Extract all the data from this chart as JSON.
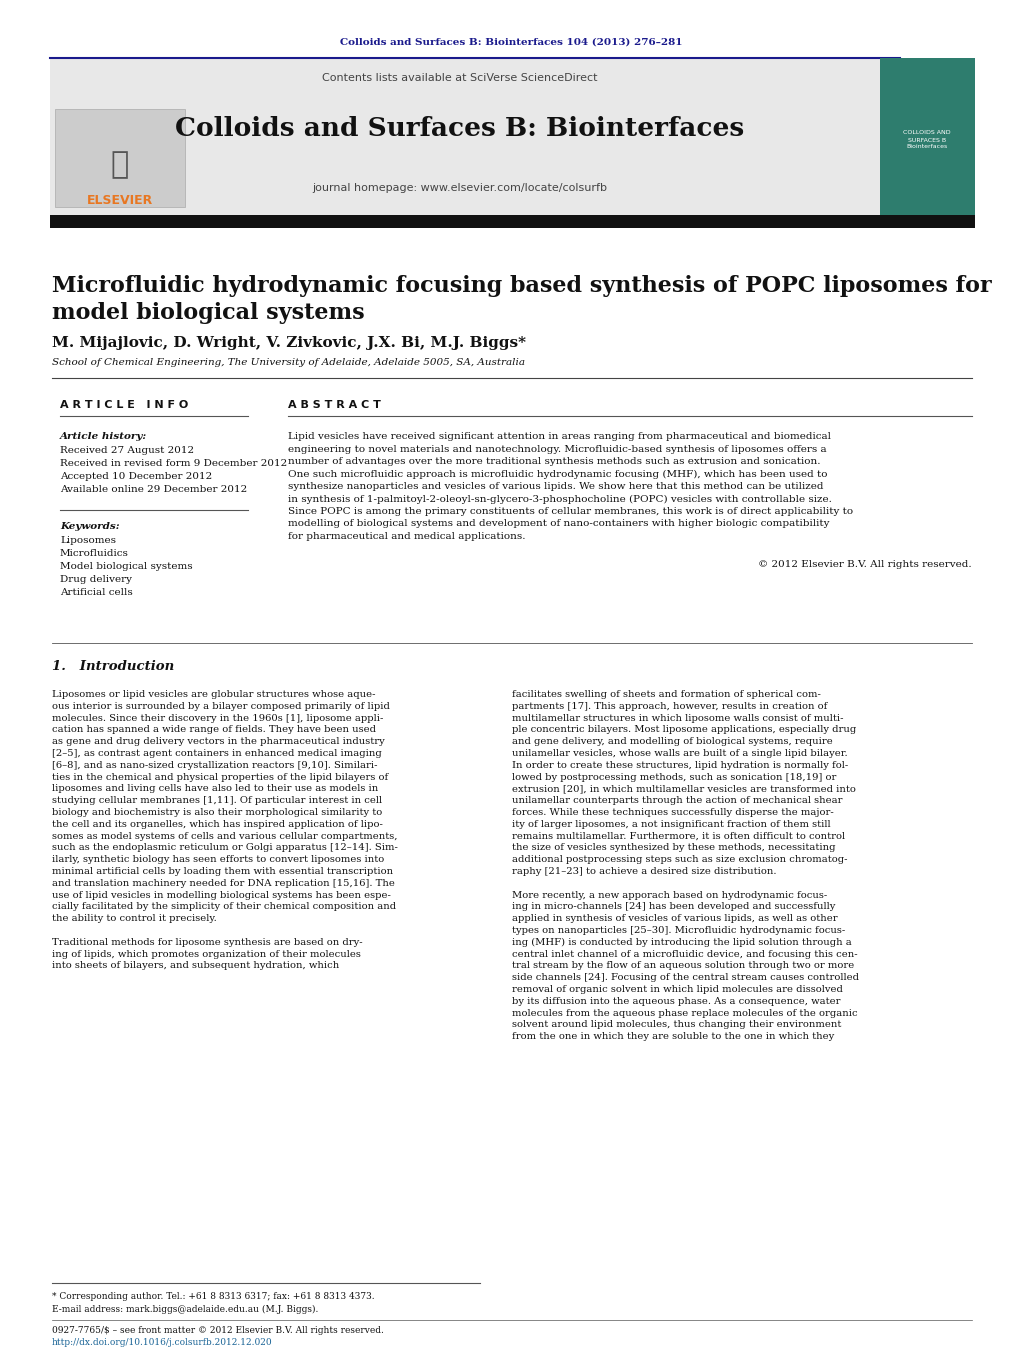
{
  "journal_ref": "Colloids and Surfaces B: Biointerfaces 104 (2013) 276–281",
  "journal_ref_color": "#1a1a8c",
  "contents_text": "Contents lists available at ",
  "sciverse_text": "SciVerse ScienceDirect",
  "sciverse_color": "#1a6496",
  "journal_title": "Colloids and Surfaces B: Biointerfaces",
  "journal_homepage_pre": "journal homepage: ",
  "journal_homepage_url": "www.elsevier.com/locate/colsurfb",
  "journal_homepage_color": "#1a6496",
  "paper_title": "Microfluidic hydrodynamic focusing based synthesis of POPC liposomes for\nmodel biological systems",
  "authors": "M. Mijajlovic, D. Wright, V. Zivkovic, J.X. Bi, M.J. Biggs",
  "authors_star": "*",
  "affiliation": "School of Chemical Engineering, The University of Adelaide, Adelaide 5005, SA, Australia",
  "article_info_title": "A R T I C L E   I N F O",
  "abstract_title": "A B S T R A C T",
  "article_history_label": "Article history:",
  "received": "Received 27 August 2012",
  "received_revised": "Received in revised form 9 December 2012",
  "accepted": "Accepted 10 December 2012",
  "available": "Available online 29 December 2012",
  "keywords_label": "Keywords:",
  "keywords": [
    "Liposomes",
    "Microfluidics",
    "Model biological systems",
    "Drug delivery",
    "Artificial cells"
  ],
  "abstract_text": "Lipid vesicles have received significant attention in areas ranging from pharmaceutical and biomedical\nengineering to novel materials and nanotechnology. Microfluidic-based synthesis of liposomes offers a\nnumber of advantages over the more traditional synthesis methods such as extrusion and sonication.\nOne such microfluidic approach is microfluidic hydrodynamic focusing (MHF), which has been used to\nsynthesize nanoparticles and vesicles of various lipids. We show here that this method can be utilized\nin synthesis of 1-palmitoyl-2-oleoyl-sn-glycero-3-phosphocholine (POPC) vesicles with controllable size.\nSince POPC is among the primary constituents of cellular membranes, this work is of direct applicability to\nmodelling of biological systems and development of nano-containers with higher biologic compatibility\nfor pharmaceutical and medical applications.",
  "copyright": "© 2012 Elsevier B.V. All rights reserved.",
  "intro_title": "1.   Introduction",
  "intro_text_col1": [
    "Liposomes or lipid vesicles are globular structures whose aque-",
    "ous interior is surrounded by a bilayer composed primarily of lipid",
    "molecules. Since their discovery in the 1960s [1], liposome appli-",
    "cation has spanned a wide range of fields. They have been used",
    "as gene and drug delivery vectors in the pharmaceutical industry",
    "[2–5], as contrast agent containers in enhanced medical imaging",
    "[6–8], and as nano-sized crystallization reactors [9,10]. Similari-",
    "ties in the chemical and physical properties of the lipid bilayers of",
    "liposomes and living cells have also led to their use as models in",
    "studying cellular membranes [1,11]. Of particular interest in cell",
    "biology and biochemistry is also their morphological similarity to",
    "the cell and its organelles, which has inspired application of lipo-",
    "somes as model systems of cells and various cellular compartments,",
    "such as the endoplasmic reticulum or Golgi apparatus [12–14]. Sim-",
    "ilarly, synthetic biology has seen efforts to convert liposomes into",
    "minimal artificial cells by loading them with essential transcription",
    "and translation machinery needed for DNA replication [15,16]. The",
    "use of lipid vesicles in modelling biological systems has been espe-",
    "cially facilitated by the simplicity of their chemical composition and",
    "the ability to control it precisely.",
    "",
    "Traditional methods for liposome synthesis are based on dry-",
    "ing of lipids, which promotes organization of their molecules",
    "into sheets of bilayers, and subsequent hydration, which"
  ],
  "intro_text_col2": [
    "facilitates swelling of sheets and formation of spherical com-",
    "partments [17]. This approach, however, results in creation of",
    "multilamellar structures in which liposome walls consist of multi-",
    "ple concentric bilayers. Most liposome applications, especially drug",
    "and gene delivery, and modelling of biological systems, require",
    "unilamellar vesicles, whose walls are built of a single lipid bilayer.",
    "In order to create these structures, lipid hydration is normally fol-",
    "lowed by postprocessing methods, such as sonication [18,19] or",
    "extrusion [20], in which multilamellar vesicles are transformed into",
    "unilamellar counterparts through the action of mechanical shear",
    "forces. While these techniques successfully disperse the major-",
    "ity of larger liposomes, a not insignificant fraction of them still",
    "remains multilamellar. Furthermore, it is often difficult to control",
    "the size of vesicles synthesized by these methods, necessitating",
    "additional postprocessing steps such as size exclusion chromatog-",
    "raphy [21–23] to achieve a desired size distribution.",
    "",
    "More recently, a new apporach based on hydrodynamic focus-",
    "ing in micro-channels [24] has been developed and successfully",
    "applied in synthesis of vesicles of various lipids, as well as other",
    "types on nanoparticles [25–30]. Microfluidic hydrodynamic focus-",
    "ing (MHF) is conducted by introducing the lipid solution through a",
    "central inlet channel of a microfluidic device, and focusing this cen-",
    "tral stream by the flow of an aqueous solution through two or more",
    "side channels [24]. Focusing of the central stream causes controlled",
    "removal of organic solvent in which lipid molecules are dissolved",
    "by its diffusion into the aqueous phase. As a consequence, water",
    "molecules from the aqueous phase replace molecules of the organic",
    "solvent around lipid molecules, thus changing their environment",
    "from the one in which they are soluble to the one in which they"
  ],
  "footer_star_note": "* Corresponding author. Tel.: +61 8 8313 6317; fax: +61 8 8313 4373.",
  "footer_email": "E-mail address: mark.biggs@adelaide.edu.au (M.J. Biggs).",
  "footer_issn": "0927-7765/$ – see front matter © 2012 Elsevier B.V. All rights reserved.",
  "footer_doi": "http://dx.doi.org/10.1016/j.colsurfb.2012.12.020",
  "bg_header_color": "#e8e8e8",
  "dark_bar_color": "#111111",
  "elsevier_color": "#e87722",
  "separator_color": "#1a1a8c",
  "cover_color": "#2e7d6e"
}
